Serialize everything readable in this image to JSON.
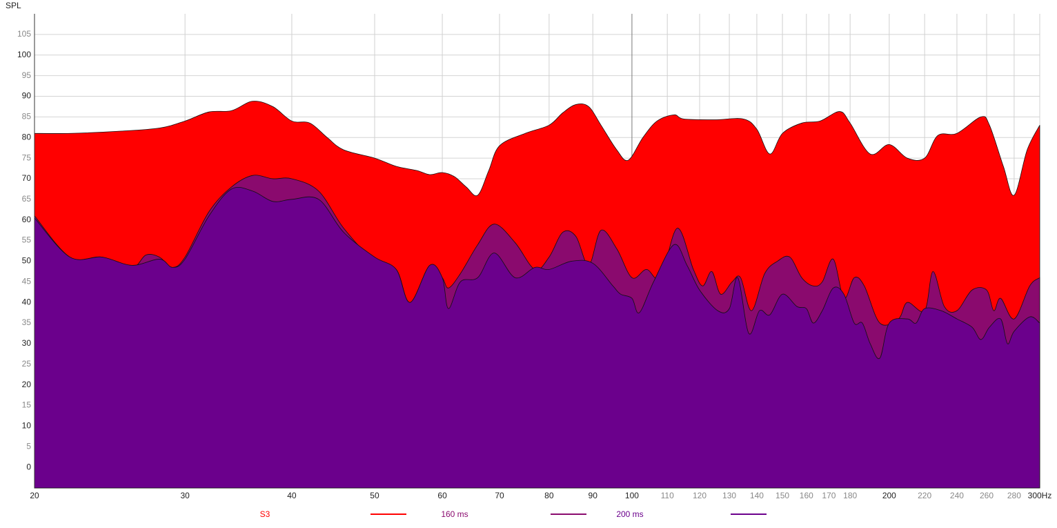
{
  "chart_data": {
    "type": "area",
    "y_label": "SPL",
    "xscale": "log",
    "grid": true,
    "xlim": [
      20,
      300
    ],
    "ylim": [
      -5,
      110
    ],
    "xticks": [
      20,
      30,
      40,
      50,
      60,
      70,
      80,
      90,
      100,
      110,
      120,
      130,
      140,
      150,
      160,
      170,
      180,
      200,
      220,
      240,
      260,
      280,
      {
        "value": 300,
        "label": "300Hz"
      }
    ],
    "yticks": [
      0,
      5,
      10,
      15,
      20,
      25,
      30,
      35,
      40,
      45,
      50,
      55,
      60,
      65,
      70,
      75,
      80,
      85,
      90,
      95,
      100,
      105
    ],
    "series": [
      {
        "name": "S3",
        "color": "#ff0000",
        "x": [
          20,
          22,
          25,
          28,
          30,
          32,
          34,
          36,
          38,
          40,
          42,
          44,
          46,
          50,
          53,
          56,
          58,
          60,
          62,
          64,
          66,
          68,
          70,
          75,
          80,
          83,
          86,
          89,
          92,
          96,
          99,
          103,
          107,
          112,
          115,
          125,
          135,
          140,
          145,
          150,
          158,
          166,
          175,
          180,
          190,
          200,
          210,
          220,
          228,
          240,
          256,
          262,
          272,
          280,
          290,
          300
        ],
        "values": [
          81,
          81,
          81.5,
          82.3,
          84,
          86.2,
          86.5,
          88.8,
          87.5,
          84,
          83.5,
          80,
          77,
          75,
          73,
          72,
          71,
          71.5,
          70.5,
          68,
          66,
          72,
          78,
          81,
          83,
          86,
          88,
          87.5,
          83,
          77,
          74.5,
          80,
          84,
          85.5,
          84.5,
          84.3,
          84.5,
          82,
          76,
          81,
          83.5,
          84,
          86.3,
          83.5,
          76,
          78.3,
          75,
          75,
          80.5,
          81,
          85,
          83,
          73,
          66,
          77,
          83
        ]
      },
      {
        "name": "160 ms",
        "color": "#8a0a6e",
        "x": [
          20,
          22,
          24,
          26,
          27,
          28,
          29,
          30,
          32,
          34,
          36,
          38,
          40,
          43,
          46,
          50,
          53,
          55,
          58,
          60,
          61,
          63,
          66,
          69,
          73,
          77,
          80,
          83,
          86,
          89,
          92,
          96,
          100,
          104,
          108,
          113,
          118,
          121,
          124,
          127,
          131,
          134,
          138,
          143,
          148,
          153,
          158,
          163,
          167,
          172,
          177,
          182,
          187,
          195,
          205,
          210,
          220,
          225,
          232,
          240,
          250,
          260,
          265,
          270,
          280,
          292,
          300
        ],
        "values": [
          61,
          51,
          51,
          48.5,
          51.5,
          51,
          48.5,
          51,
          62,
          68,
          70.8,
          70,
          70,
          67,
          58,
          50,
          48,
          40,
          49,
          46,
          43.5,
          47,
          54,
          59,
          54.5,
          48,
          51,
          57,
          56,
          49,
          57.5,
          53,
          46,
          48,
          46,
          58,
          48,
          44,
          47.5,
          42,
          45,
          46,
          38,
          47,
          50,
          51,
          46,
          44,
          45,
          50.5,
          41,
          46,
          44,
          35,
          36,
          40,
          38,
          47.5,
          39,
          38,
          43,
          43,
          38,
          41,
          36,
          44,
          46
        ]
      },
      {
        "name": "200 ms",
        "color": "#6b008c",
        "x": [
          20,
          22,
          24,
          26,
          28,
          29,
          30,
          32,
          34,
          36,
          38,
          40,
          43,
          46,
          50,
          53,
          55,
          58,
          60,
          61,
          63,
          66,
          69,
          73,
          77,
          80,
          85,
          90,
          95,
          97,
          100,
          102,
          106,
          112,
          116,
          120,
          126,
          130,
          133,
          137,
          141,
          145,
          150,
          156,
          160,
          163,
          167,
          172,
          177,
          182,
          186,
          190,
          195,
          200,
          210,
          215,
          220,
          230,
          240,
          250,
          256,
          262,
          270,
          275,
          280,
          292,
          300
        ],
        "values": [
          60.5,
          51,
          51,
          49,
          50.5,
          48.5,
          50.5,
          61,
          67.5,
          67,
          64.5,
          65,
          65,
          57,
          51,
          48,
          40,
          49,
          46,
          38.5,
          45,
          46,
          52,
          46,
          48.5,
          48,
          50,
          49.5,
          44,
          42,
          41,
          37.5,
          45,
          54,
          49,
          43,
          38,
          38.5,
          46,
          32.5,
          38,
          37,
          42,
          39,
          38.5,
          35,
          38,
          43.5,
          42,
          35,
          35,
          30,
          26.5,
          35,
          36,
          35,
          38.5,
          38,
          36,
          34,
          31,
          34,
          36,
          30,
          33,
          36.5,
          35
        ]
      }
    ]
  }
}
